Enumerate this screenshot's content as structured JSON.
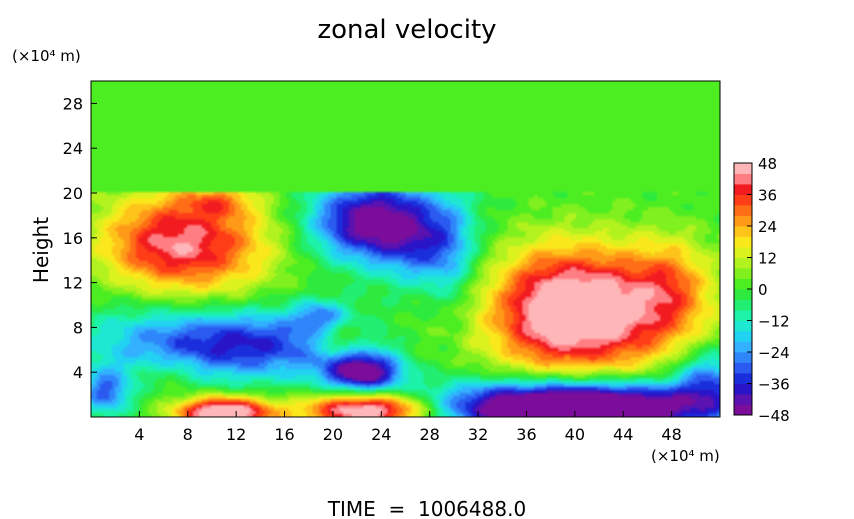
{
  "chart_data": {
    "type": "heatmap",
    "title": "zonal velocity",
    "ylabel": "Height",
    "y_unit": "(×10⁴ m)",
    "x_unit": "(×10⁴ m)",
    "footer": "TIME  =  1006488.0",
    "xlim": [
      0,
      52
    ],
    "ylim": [
      0,
      30
    ],
    "x_ticks": [
      "4",
      "8",
      "12",
      "16",
      "20",
      "24",
      "28",
      "32",
      "36",
      "40",
      "44",
      "48"
    ],
    "y_ticks": [
      "4",
      "8",
      "12",
      "16",
      "20",
      "24",
      "28"
    ],
    "colorbar": {
      "range": [
        -48,
        48
      ],
      "ticks": [
        "48",
        "36",
        "24",
        "12",
        "0",
        "−12",
        "−24",
        "−36",
        "−48"
      ]
    },
    "field_features": [
      {
        "x": 0,
        "y": 0,
        "sx": 0,
        "sy": 0,
        "v": 0
      },
      {
        "x": 8,
        "y": 15.5,
        "sx": 5,
        "sy": 3.5,
        "v": 40
      },
      {
        "x": 10.5,
        "y": 19.2,
        "sx": 2,
        "sy": 0.9,
        "v": 14
      },
      {
        "x": 5,
        "y": 15,
        "sx": 3,
        "sy": 2.5,
        "v": 6
      },
      {
        "x": 23,
        "y": 17.5,
        "sx": 3.5,
        "sy": 2.5,
        "v": -48
      },
      {
        "x": 27.5,
        "y": 15,
        "sx": 2.5,
        "sy": 3,
        "v": -24
      },
      {
        "x": 30,
        "y": 13,
        "sx": 1.5,
        "sy": 5,
        "v": -14
      },
      {
        "x": 40,
        "y": 9.5,
        "sx": 6.5,
        "sy": 4,
        "v": 58
      },
      {
        "x": 33.5,
        "y": 10,
        "sx": 2,
        "sy": 4,
        "v": -10
      },
      {
        "x": 12,
        "y": 6.5,
        "sx": 7,
        "sy": 2.2,
        "v": -38
      },
      {
        "x": 4,
        "y": 9,
        "sx": 4,
        "sy": 3,
        "v": -6
      },
      {
        "x": 22.5,
        "y": 4,
        "sx": 2.2,
        "sy": 1.2,
        "v": -48
      },
      {
        "x": 20.5,
        "y": 7,
        "sx": 1.5,
        "sy": 1.2,
        "v": 16
      },
      {
        "x": 19,
        "y": 9,
        "sx": 1.5,
        "sy": 1,
        "v": -20
      },
      {
        "x": 11,
        "y": 0.4,
        "sx": 2.8,
        "sy": 1,
        "v": 58
      },
      {
        "x": 23,
        "y": 0.6,
        "sx": 3.8,
        "sy": 1.1,
        "v": 58
      },
      {
        "x": 40,
        "y": 0.9,
        "sx": 8,
        "sy": 1.6,
        "v": -76
      },
      {
        "x": 1.2,
        "y": 2.2,
        "sx": 1.5,
        "sy": 1.5,
        "v": -28
      },
      {
        "x": 51,
        "y": 3.5,
        "sx": 2,
        "sy": 2,
        "v": -26
      },
      {
        "x": 48,
        "y": 12,
        "sx": 2,
        "sy": 3,
        "v": 14
      },
      {
        "x": 6.5,
        "y": 4,
        "sx": 2,
        "sy": 1.3,
        "v": 8
      }
    ]
  }
}
